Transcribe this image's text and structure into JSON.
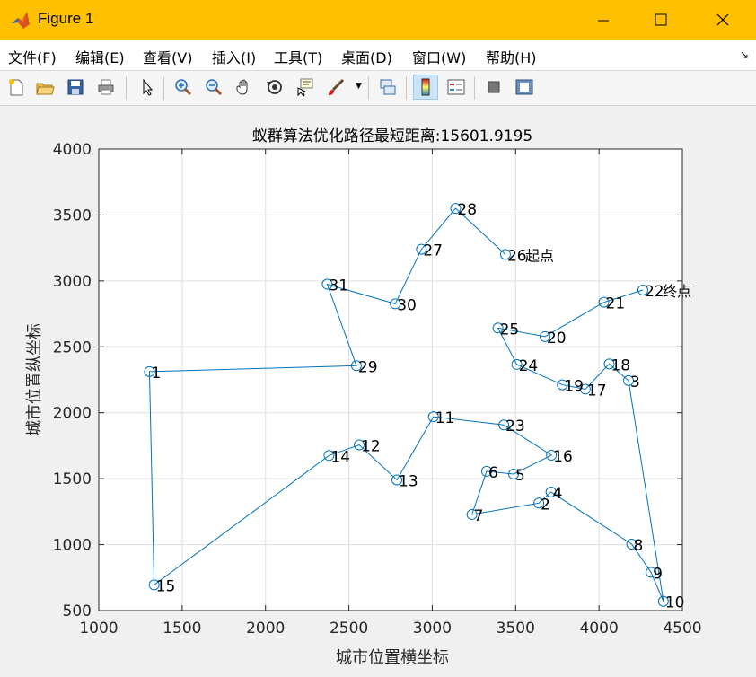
{
  "window": {
    "title": "Figure 1"
  },
  "menu": {
    "items": [
      "文件(F)",
      "编辑(E)",
      "查看(V)",
      "插入(I)",
      "工具(T)",
      "桌面(D)",
      "窗口(W)",
      "帮助(H)"
    ]
  },
  "toolbar": {
    "buttons": [
      {
        "name": "new-figure-icon"
      },
      {
        "name": "open-file-icon"
      },
      {
        "name": "save-icon"
      },
      {
        "name": "print-icon"
      },
      {
        "name": "pointer-icon"
      },
      {
        "name": "zoom-in-icon"
      },
      {
        "name": "zoom-out-icon"
      },
      {
        "name": "pan-hand-icon"
      },
      {
        "name": "rotate-3d-icon"
      },
      {
        "name": "data-cursor-icon"
      },
      {
        "name": "brush-icon"
      },
      {
        "name": "link-plot-icon"
      },
      {
        "name": "colorbar-icon"
      },
      {
        "name": "legend-icon"
      },
      {
        "name": "hide-plot-tools-icon"
      },
      {
        "name": "show-plot-tools-icon"
      }
    ]
  },
  "chart_data": {
    "type": "line",
    "title": "蚁群算法优化路径最短距离:15601.9195",
    "xlabel": "城市位置横坐标",
    "ylabel": "城市位置纵坐标",
    "xlim": [
      1000,
      4500
    ],
    "ylim": [
      500,
      4000
    ],
    "xticks": [
      1000,
      1500,
      2000,
      2500,
      3000,
      3500,
      4000,
      4500
    ],
    "yticks": [
      500,
      1000,
      1500,
      2000,
      2500,
      3000,
      3500,
      4000
    ],
    "grid": true,
    "line_color": "#0072bd",
    "cities": [
      {
        "id": "1",
        "x": 1304,
        "y": 2312
      },
      {
        "id": "2",
        "x": 3639,
        "y": 1315
      },
      {
        "id": "3",
        "x": 4177,
        "y": 2244
      },
      {
        "id": "4",
        "x": 3712,
        "y": 1399
      },
      {
        "id": "5",
        "x": 3488,
        "y": 1535
      },
      {
        "id": "6",
        "x": 3326,
        "y": 1556
      },
      {
        "id": "7",
        "x": 3238,
        "y": 1229
      },
      {
        "id": "8",
        "x": 4196,
        "y": 1004
      },
      {
        "id": "9",
        "x": 4312,
        "y": 790
      },
      {
        "id": "10",
        "x": 4386,
        "y": 570
      },
      {
        "id": "11",
        "x": 3007,
        "y": 1970
      },
      {
        "id": "12",
        "x": 2562,
        "y": 1756
      },
      {
        "id": "13",
        "x": 2788,
        "y": 1491
      },
      {
        "id": "14",
        "x": 2381,
        "y": 1676
      },
      {
        "id": "15",
        "x": 1332,
        "y": 695
      },
      {
        "id": "16",
        "x": 3715,
        "y": 1678
      },
      {
        "id": "17",
        "x": 3918,
        "y": 2179
      },
      {
        "id": "18",
        "x": 4061,
        "y": 2370
      },
      {
        "id": "19",
        "x": 3780,
        "y": 2212
      },
      {
        "id": "20",
        "x": 3676,
        "y": 2578
      },
      {
        "id": "21",
        "x": 4029,
        "y": 2838
      },
      {
        "id": "22",
        "x": 4263,
        "y": 2931
      },
      {
        "id": "23",
        "x": 3429,
        "y": 1908
      },
      {
        "id": "24",
        "x": 3507,
        "y": 2367
      },
      {
        "id": "25",
        "x": 3394,
        "y": 2643
      },
      {
        "id": "26",
        "x": 3439,
        "y": 3201
      },
      {
        "id": "27",
        "x": 2935,
        "y": 3240
      },
      {
        "id": "28",
        "x": 3140,
        "y": 3550
      },
      {
        "id": "29",
        "x": 2545,
        "y": 2357
      },
      {
        "id": "30",
        "x": 2778,
        "y": 2826
      },
      {
        "id": "31",
        "x": 2370,
        "y": 2975
      }
    ],
    "route": [
      "26",
      "28",
      "27",
      "30",
      "31",
      "29",
      "1",
      "15",
      "14",
      "12",
      "13",
      "11",
      "23",
      "16",
      "5",
      "6",
      "7",
      "2",
      "4",
      "8",
      "9",
      "10",
      "3",
      "18",
      "17",
      "19",
      "24",
      "25",
      "20",
      "21",
      "22"
    ],
    "start_label": "起点",
    "end_label": "终点"
  }
}
